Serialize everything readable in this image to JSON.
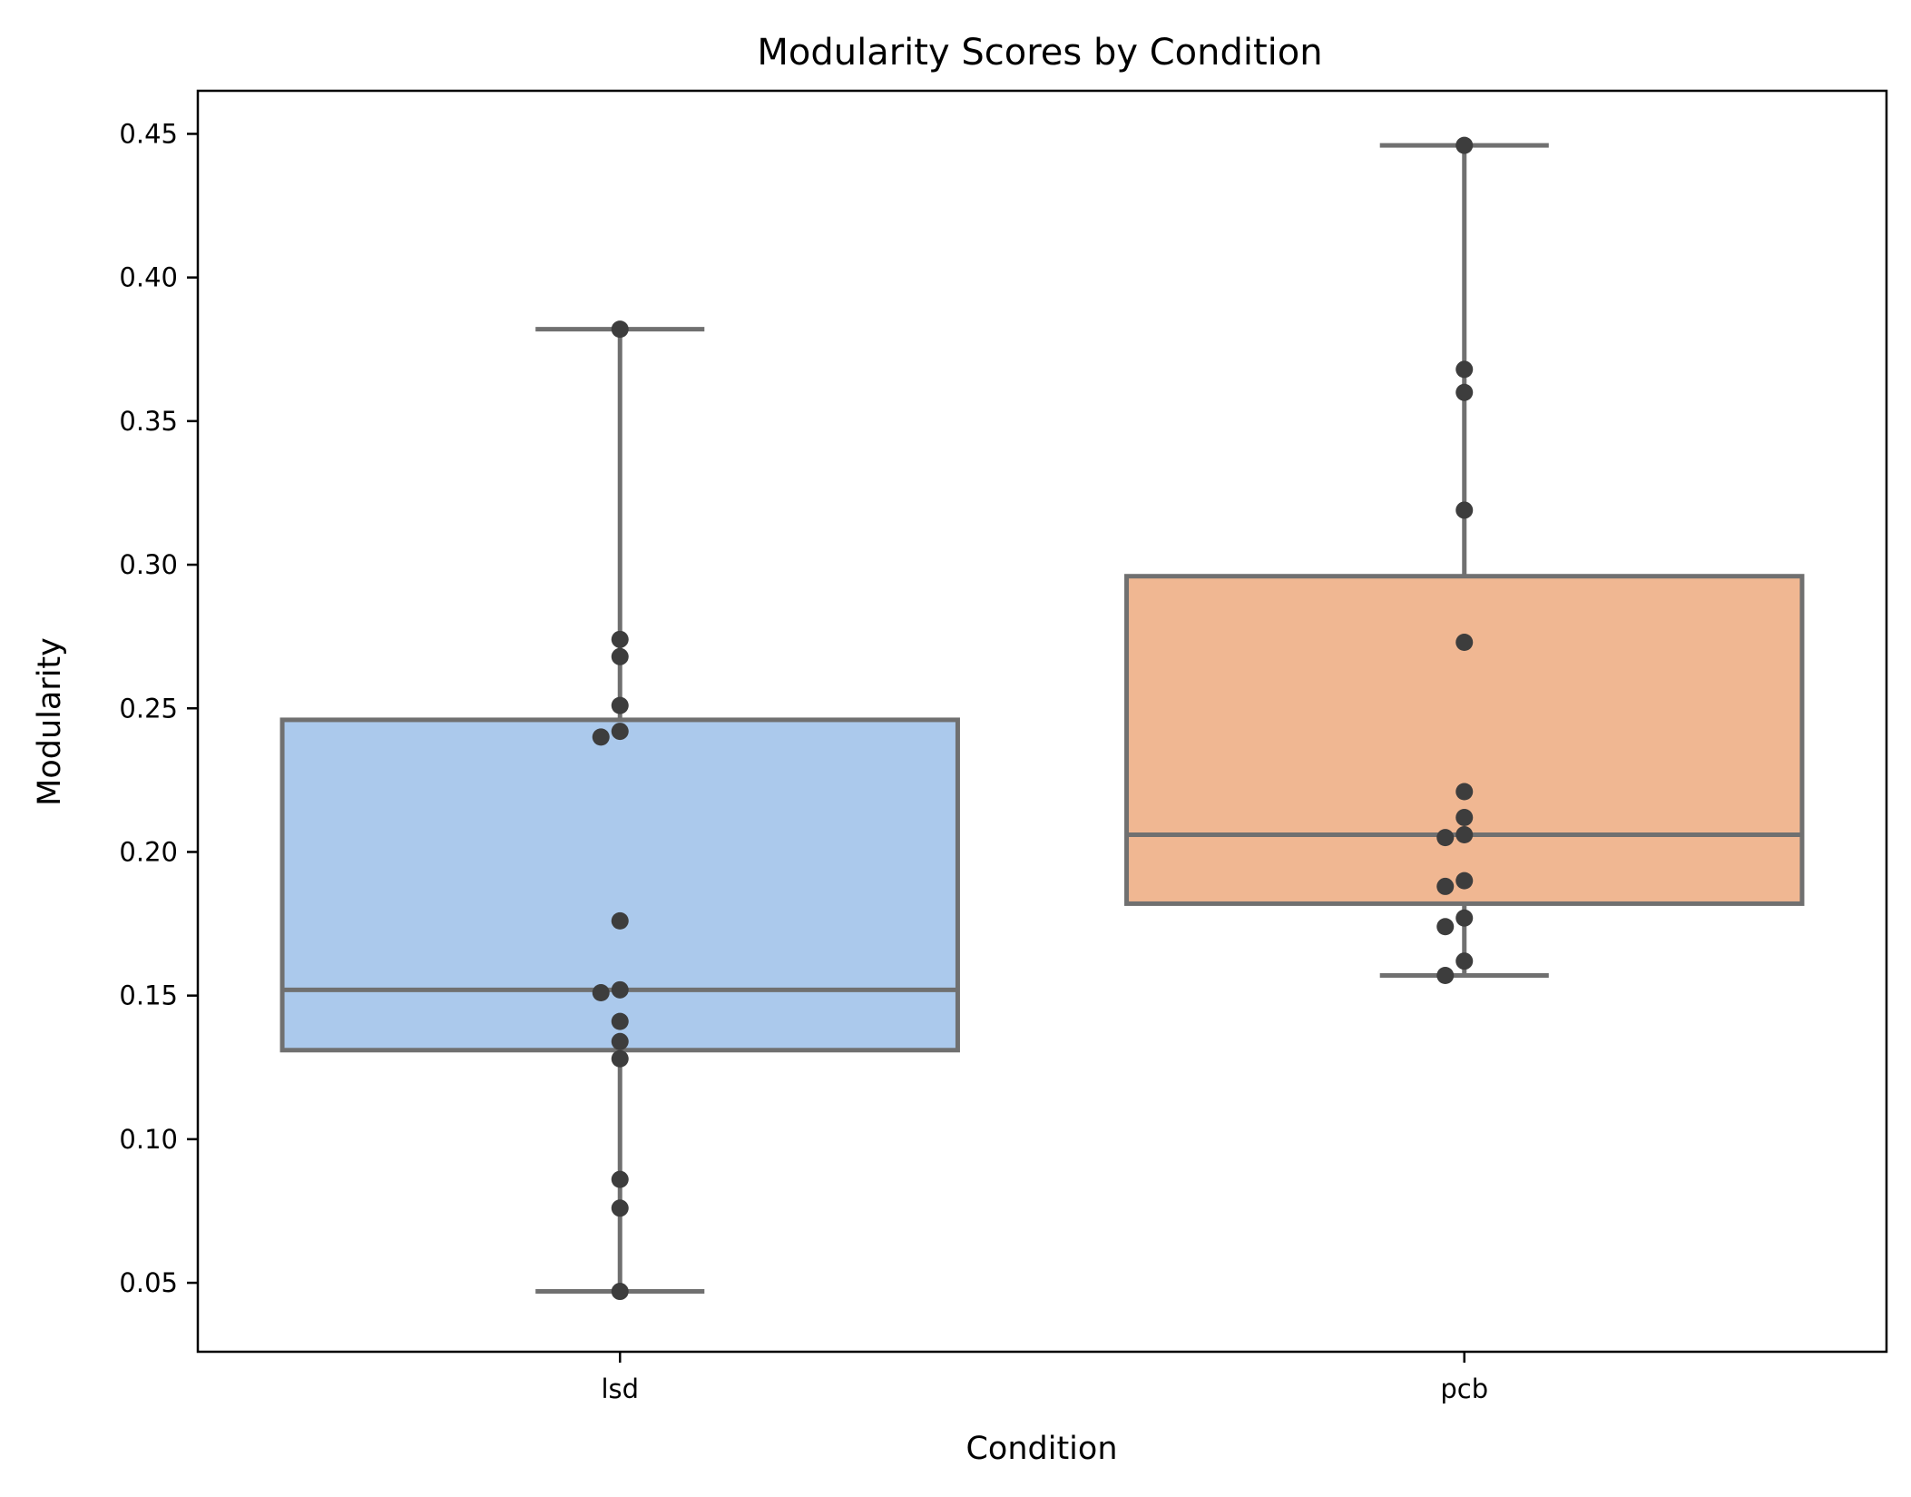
{
  "chart_data": {
    "type": "box",
    "title": "Modularity Scores by Condition",
    "xlabel": "Condition",
    "ylabel": "Modularity",
    "categories": [
      "lsd",
      "pcb"
    ],
    "ylim": [
      0.026,
      0.465
    ],
    "yticks": [
      "0.05",
      "0.10",
      "0.15",
      "0.20",
      "0.25",
      "0.30",
      "0.35",
      "0.40",
      "0.45"
    ],
    "grid": false,
    "legend": "none",
    "boxes": [
      {
        "category": "lsd",
        "color": "#abc9ec",
        "whisker_low": 0.047,
        "q1": 0.131,
        "median": 0.152,
        "q3": 0.246,
        "whisker_high": 0.382,
        "points": [
          0.382,
          0.274,
          0.268,
          0.251,
          0.242,
          0.24,
          0.176,
          0.152,
          0.151,
          0.141,
          0.134,
          0.128,
          0.086,
          0.076,
          0.047
        ]
      },
      {
        "category": "pcb",
        "color": "#f0b792",
        "whisker_low": 0.157,
        "q1": 0.182,
        "median": 0.206,
        "q3": 0.296,
        "whisker_high": 0.446,
        "points": [
          0.446,
          0.368,
          0.36,
          0.319,
          0.273,
          0.221,
          0.212,
          0.206,
          0.205,
          0.19,
          0.188,
          0.177,
          0.174,
          0.162,
          0.157
        ]
      }
    ],
    "colors": {
      "box_edge": "#707070",
      "point": "#3d3d3d",
      "axes": "#000000"
    }
  }
}
